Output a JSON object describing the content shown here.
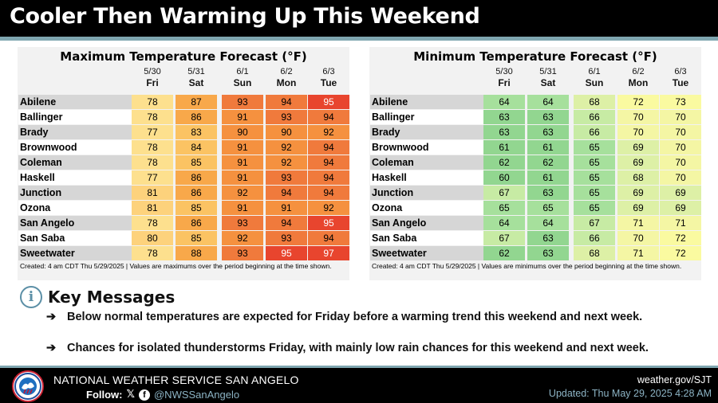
{
  "header": {
    "title": "Cooler Then Warming Up This Weekend"
  },
  "days": [
    {
      "date": "5/30",
      "day": "Fri"
    },
    {
      "date": "5/31",
      "day": "Sat"
    },
    {
      "date": "6/1",
      "day": "Sun"
    },
    {
      "date": "6/2",
      "day": "Mon"
    },
    {
      "date": "6/3",
      "day": "Tue"
    }
  ],
  "max_table": {
    "title": "Maximum Temperature Forecast (°F)",
    "footnote": "Created: 4 am CDT Thu 5/29/2025  |  Values are maximums over the period beginning at the time shown.",
    "rows": [
      {
        "name": "Abilene",
        "values": [
          78,
          87,
          93,
          94,
          95
        ]
      },
      {
        "name": "Ballinger",
        "values": [
          78,
          86,
          91,
          93,
          94
        ]
      },
      {
        "name": "Brady",
        "values": [
          77,
          83,
          90,
          90,
          92
        ]
      },
      {
        "name": "Brownwood",
        "values": [
          78,
          84,
          91,
          92,
          94
        ]
      },
      {
        "name": "Coleman",
        "values": [
          78,
          85,
          91,
          92,
          94
        ]
      },
      {
        "name": "Haskell",
        "values": [
          77,
          86,
          91,
          93,
          94
        ]
      },
      {
        "name": "Junction",
        "values": [
          81,
          86,
          92,
          94,
          94
        ]
      },
      {
        "name": "Ozona",
        "values": [
          81,
          85,
          91,
          91,
          92
        ]
      },
      {
        "name": "San Angelo",
        "values": [
          78,
          86,
          93,
          94,
          95
        ]
      },
      {
        "name": "San Saba",
        "values": [
          80,
          85,
          92,
          93,
          94
        ]
      },
      {
        "name": "Sweetwater",
        "values": [
          78,
          88,
          93,
          95,
          97
        ]
      }
    ]
  },
  "min_table": {
    "title": "Minimum Temperature Forecast (°F)",
    "footnote": "Created: 4 am CDT Thu 5/29/2025  |  Values are minimums over the period beginning at the time shown.",
    "rows": [
      {
        "name": "Abilene",
        "values": [
          64,
          64,
          68,
          72,
          73
        ]
      },
      {
        "name": "Ballinger",
        "values": [
          63,
          63,
          66,
          70,
          70
        ]
      },
      {
        "name": "Brady",
        "values": [
          63,
          63,
          66,
          70,
          70
        ]
      },
      {
        "name": "Brownwood",
        "values": [
          61,
          61,
          65,
          69,
          70
        ]
      },
      {
        "name": "Coleman",
        "values": [
          62,
          62,
          65,
          69,
          70
        ]
      },
      {
        "name": "Haskell",
        "values": [
          60,
          61,
          65,
          68,
          70
        ]
      },
      {
        "name": "Junction",
        "values": [
          67,
          63,
          65,
          69,
          69
        ]
      },
      {
        "name": "Ozona",
        "values": [
          65,
          65,
          65,
          69,
          69
        ]
      },
      {
        "name": "San Angelo",
        "values": [
          64,
          64,
          67,
          71,
          71
        ]
      },
      {
        "name": "San Saba",
        "values": [
          67,
          63,
          66,
          70,
          72
        ]
      },
      {
        "name": "Sweetwater",
        "values": [
          62,
          63,
          68,
          71,
          72
        ]
      }
    ]
  },
  "key_messages": {
    "icon": "info-icon",
    "title": "Key Messages",
    "bullet_icon": "right-arrow-icon",
    "arrow": "➔",
    "items": [
      "Below normal temperatures are expected for Friday before a warming trend this weekend and next week.",
      "Chances for isolated thunderstorms Friday, with mainly low rain chances for this weekend and next week."
    ]
  },
  "footer": {
    "org": "NATIONAL WEATHER SERVICE SAN ANGELO",
    "follow_label": "Follow:",
    "x_icon": "x-logo-icon",
    "x_glyph": "𝕏",
    "facebook_icon": "facebook-icon",
    "facebook_glyph": "f",
    "handle": "@NWSSanAngelo",
    "website": "weather.gov/SJT",
    "updated": "Updated: Thu May 29, 2025 4:28 AM"
  },
  "colors": {
    "banner_bg": "#000000",
    "accent": "#7fa6b0",
    "info_blue": "#5b8fa6"
  }
}
